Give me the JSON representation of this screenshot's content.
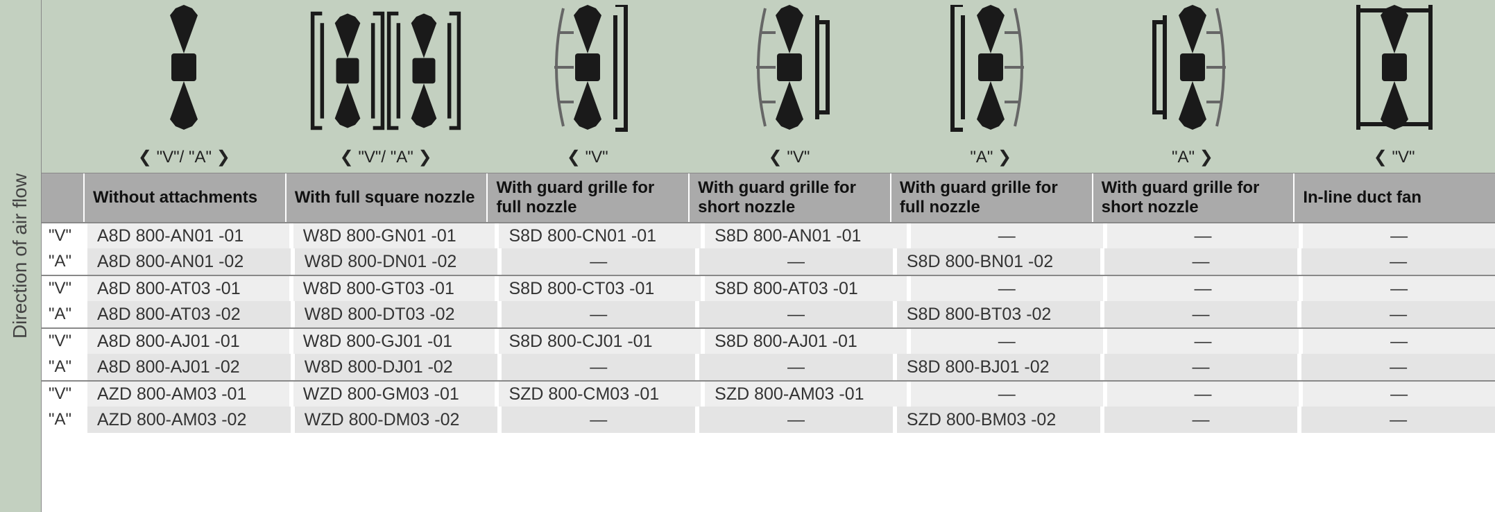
{
  "vertical_label": "Direction of air flow",
  "columns": [
    {
      "header": "Without attachments",
      "arrow": "❮ \"V\"/ \"A\" ❯",
      "icon": "fan_plain"
    },
    {
      "header": "With full square nozzle",
      "arrow": "❮ \"V\"/ \"A\" ❯",
      "icon": "fan_square_nozzle_pair"
    },
    {
      "header": "With guard grille for full nozzle",
      "arrow": "❮ \"V\"",
      "icon": "fan_grille_full_left"
    },
    {
      "header": "With guard grille for short nozzle",
      "arrow": "❮ \"V\"",
      "icon": "fan_grille_short_left"
    },
    {
      "header": "With guard grille for full nozzle",
      "arrow": "\"A\" ❯",
      "icon": "fan_grille_full_right"
    },
    {
      "header": "With guard grille for short nozzle",
      "arrow": "\"A\" ❯",
      "icon": "fan_grille_short_right"
    },
    {
      "header": "In-line duct fan",
      "arrow": "❮ \"V\"",
      "icon": "fan_duct"
    }
  ],
  "groups": [
    {
      "rows": [
        {
          "key": "\"V\"",
          "cells": [
            "A8D 800-AN01 -01",
            "W8D 800-GN01 -01",
            "S8D 800-CN01 -01",
            "S8D 800-AN01 -01",
            "—",
            "—",
            "—"
          ]
        },
        {
          "key": "\"A\"",
          "cells": [
            "A8D 800-AN01 -02",
            "W8D 800-DN01 -02",
            "—",
            "—",
            "S8D 800-BN01 -02",
            "—",
            "—"
          ]
        }
      ]
    },
    {
      "rows": [
        {
          "key": "\"V\"",
          "cells": [
            "A8D 800-AT03 -01",
            "W8D 800-GT03 -01",
            "S8D 800-CT03 -01",
            "S8D 800-AT03 -01",
            "—",
            "—",
            "—"
          ]
        },
        {
          "key": "\"A\"",
          "cells": [
            "A8D 800-AT03 -02",
            "W8D 800-DT03 -02",
            "—",
            "—",
            "S8D 800-BT03 -02",
            "—",
            "—"
          ]
        }
      ]
    },
    {
      "rows": [
        {
          "key": "\"V\"",
          "cells": [
            "A8D 800-AJ01 -01",
            "W8D 800-GJ01 -01",
            "S8D 800-CJ01 -01",
            "S8D 800-AJ01 -01",
            "—",
            "—",
            "—"
          ]
        },
        {
          "key": "\"A\"",
          "cells": [
            "A8D 800-AJ01 -02",
            "W8D 800-DJ01 -02",
            "—",
            "—",
            "S8D 800-BJ01 -02",
            "—",
            "—"
          ]
        }
      ]
    },
    {
      "rows": [
        {
          "key": "\"V\"",
          "cells": [
            "AZD 800-AM03 -01",
            "WZD 800-GM03 -01",
            "SZD 800-CM03 -01",
            "SZD 800-AM03 -01",
            "—",
            "—",
            "—"
          ]
        },
        {
          "key": "\"A\"",
          "cells": [
            "AZD 800-AM03 -02",
            "WZD 800-DM03 -02",
            "—",
            "—",
            "SZD 800-BM03 -02",
            "—",
            "—"
          ]
        }
      ]
    }
  ],
  "style": {
    "header_bg": "#aaaaaa",
    "icon_row_bg": "#c3d0c0",
    "cell_bg": "#eeeeee",
    "fan_color": "#1a1a1a",
    "grille_color": "#666"
  }
}
